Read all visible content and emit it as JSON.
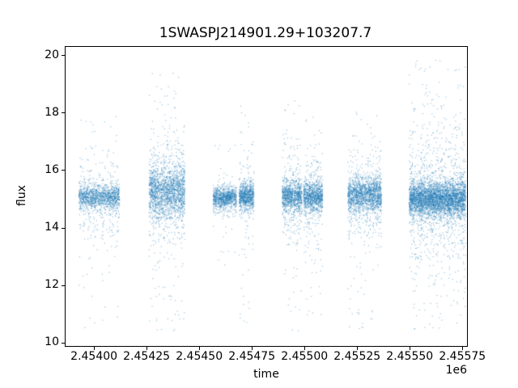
{
  "figure": {
    "background": "#ffffff"
  },
  "chart_data": {
    "type": "scatter",
    "title": "1SWASPJ214901.29+103207.7",
    "xlabel": "time",
    "ylabel": "flux",
    "x_offset_text": "1e6",
    "xlim": [
      2453865,
      2455772
    ],
    "ylim": [
      9.9,
      20.3
    ],
    "flux_clip": [
      10.3,
      19.88
    ],
    "x_ticks": [
      2454000,
      2454250,
      2454500,
      2454750,
      2455000,
      2455250,
      2455500,
      2455750
    ],
    "x_tick_labels": [
      "2.45400",
      "2.45425",
      "2.45450",
      "2.45475",
      "2.45500",
      "2.45525",
      "2.45550",
      "2.45575"
    ],
    "y_ticks": [
      10,
      12,
      14,
      16,
      18,
      20
    ],
    "y_tick_labels": [
      "10",
      "12",
      "14",
      "16",
      "18",
      "20"
    ],
    "marker": {
      "color": "#1f77b4",
      "alpha": 0.45,
      "size": 1.2
    },
    "clusters": [
      {
        "t_min": 2453928,
        "t_max": 2454122,
        "core": {
          "n": 1150,
          "mean": 15.08,
          "sd": 0.21
        },
        "spread": {
          "n": 300,
          "mean": 15.0,
          "sd": 0.75
        },
        "outliers": {
          "n": 52,
          "min": 10.5,
          "max": 17.9
        }
      },
      {
        "t_min": 2454262,
        "t_max": 2454432,
        "core": {
          "n": 1500,
          "mean": 15.25,
          "sd": 0.45
        },
        "spread": {
          "n": 470,
          "mean": 15.2,
          "sd": 1.05
        },
        "outliers": {
          "n": 115,
          "min": 10.4,
          "max": 19.45
        }
      },
      {
        "t_min": 2454566,
        "t_max": 2454678,
        "core": {
          "n": 850,
          "mean": 15.05,
          "sd": 0.18
        },
        "spread": {
          "n": 110,
          "mean": 15.0,
          "sd": 0.45
        },
        "outliers": {
          "n": 20,
          "min": 12.6,
          "max": 16.9
        }
      },
      {
        "t_min": 2454690,
        "t_max": 2454760,
        "core": {
          "n": 700,
          "mean": 15.1,
          "sd": 0.22
        },
        "spread": {
          "n": 130,
          "mean": 15.05,
          "sd": 0.6
        },
        "outliers": {
          "n": 42,
          "min": 10.6,
          "max": 18.3
        }
      },
      {
        "t_min": 2454894,
        "t_max": 2454988,
        "core": {
          "n": 850,
          "mean": 15.1,
          "sd": 0.26
        },
        "spread": {
          "n": 215,
          "mean": 15.05,
          "sd": 0.9
        },
        "outliers": {
          "n": 48,
          "min": 10.4,
          "max": 18.6
        }
      },
      {
        "t_min": 2454996,
        "t_max": 2455086,
        "core": {
          "n": 850,
          "mean": 15.1,
          "sd": 0.26
        },
        "spread": {
          "n": 215,
          "mean": 15.05,
          "sd": 0.9
        },
        "outliers": {
          "n": 47,
          "min": 10.4,
          "max": 18.0
        }
      },
      {
        "t_min": 2455206,
        "t_max": 2455366,
        "core": {
          "n": 1400,
          "mean": 15.15,
          "sd": 0.3
        },
        "spread": {
          "n": 370,
          "mean": 15.1,
          "sd": 0.85
        },
        "outliers": {
          "n": 78,
          "min": 10.4,
          "max": 18.2
        }
      },
      {
        "t_min": 2455498,
        "t_max": 2455766,
        "core": {
          "n": 3300,
          "mean": 15.0,
          "sd": 0.3
        },
        "spread": {
          "n": 950,
          "mean": 15.0,
          "sd": 1.1
        },
        "outliers": {
          "n": 230,
          "min": 10.3,
          "max": 19.85
        }
      }
    ]
  }
}
